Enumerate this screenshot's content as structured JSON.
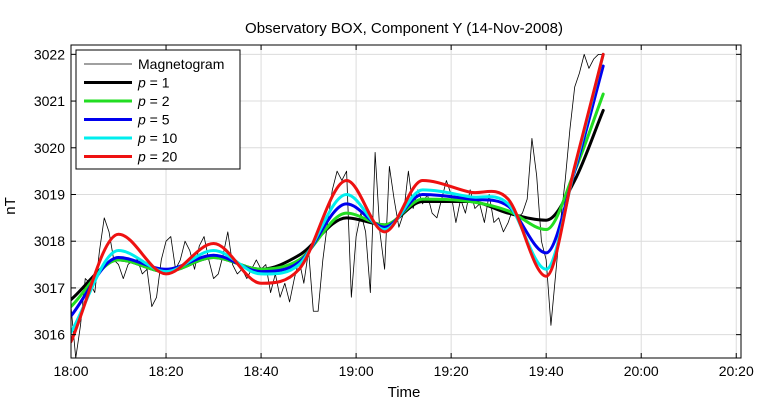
{
  "chart_data": {
    "type": "line",
    "title": "Observatory BOX,  Component Y   (14-Nov-2008)",
    "xlabel": "Time",
    "ylabel": "nT",
    "x_unit": "minutes after 18:00",
    "xlim": [
      0,
      141
    ],
    "ylim": [
      3015.5,
      3022.2
    ],
    "x_ticks": [
      0,
      20,
      40,
      60,
      80,
      100,
      120,
      140
    ],
    "x_tick_labels": [
      "18:00",
      "18:20",
      "18:40",
      "19:00",
      "19:20",
      "19:40",
      "20:00",
      "20:20"
    ],
    "y_ticks": [
      3016,
      3017,
      3018,
      3019,
      3020,
      3021,
      3022
    ],
    "y_tick_labels": [
      "3016",
      "3017",
      "3018",
      "3019",
      "3020",
      "3021",
      "3022"
    ],
    "grid": true,
    "legend_position": "top-left",
    "series": [
      {
        "name": "Magnetogram",
        "color": "#000000",
        "line_width": 0.8,
        "points": [
          [
            0,
            3016.6
          ],
          [
            1,
            3015.5
          ],
          [
            2,
            3016.2
          ],
          [
            3,
            3017.2
          ],
          [
            4,
            3017.1
          ],
          [
            5,
            3016.9
          ],
          [
            6,
            3017.8
          ],
          [
            7,
            3018.5
          ],
          [
            8,
            3018.2
          ],
          [
            9,
            3017.6
          ],
          [
            10,
            3017.5
          ],
          [
            11,
            3017.2
          ],
          [
            12,
            3017.5
          ],
          [
            13,
            3017.6
          ],
          [
            14,
            3017.6
          ],
          [
            15,
            3017.3
          ],
          [
            16,
            3017.4
          ],
          [
            17,
            3016.6
          ],
          [
            18,
            3016.8
          ],
          [
            19,
            3017.6
          ],
          [
            20,
            3018.0
          ],
          [
            21,
            3018.1
          ],
          [
            22,
            3017.4
          ],
          [
            23,
            3017.6
          ],
          [
            24,
            3018.0
          ],
          [
            25,
            3017.8
          ],
          [
            26,
            3017.4
          ],
          [
            27,
            3017.9
          ],
          [
            28,
            3018.1
          ],
          [
            29,
            3017.6
          ],
          [
            30,
            3017.2
          ],
          [
            31,
            3017.3
          ],
          [
            32,
            3017.7
          ],
          [
            33,
            3018.2
          ],
          [
            34,
            3017.5
          ],
          [
            35,
            3017.3
          ],
          [
            36,
            3017.4
          ],
          [
            37,
            3017.2
          ],
          [
            38,
            3017.4
          ],
          [
            39,
            3017.6
          ],
          [
            40,
            3017.4
          ],
          [
            41,
            3017.5
          ],
          [
            42,
            3016.9
          ],
          [
            43,
            3017.3
          ],
          [
            44,
            3016.8
          ],
          [
            45,
            3017.1
          ],
          [
            46,
            3016.7
          ],
          [
            47,
            3017.2
          ],
          [
            48,
            3017.6
          ],
          [
            49,
            3017.1
          ],
          [
            50,
            3017.8
          ],
          [
            51,
            3016.5
          ],
          [
            52,
            3016.5
          ],
          [
            53,
            3017.6
          ],
          [
            54,
            3018.4
          ],
          [
            55,
            3019.1
          ],
          [
            56,
            3019.5
          ],
          [
            57,
            3019.3
          ],
          [
            58,
            3019.5
          ],
          [
            59,
            3016.8
          ],
          [
            60,
            3018.1
          ],
          [
            61,
            3018.6
          ],
          [
            62,
            3018.2
          ],
          [
            63,
            3016.9
          ],
          [
            64,
            3019.9
          ],
          [
            65,
            3018.2
          ],
          [
            66,
            3017.4
          ],
          [
            67,
            3019.6
          ],
          [
            68,
            3018.9
          ],
          [
            69,
            3018.3
          ],
          [
            70,
            3018.6
          ],
          [
            71,
            3019.5
          ],
          [
            72,
            3018.7
          ],
          [
            73,
            3019.1
          ],
          [
            74,
            3018.8
          ],
          [
            75,
            3019.0
          ],
          [
            76,
            3018.6
          ],
          [
            77,
            3018.5
          ],
          [
            78,
            3018.9
          ],
          [
            79,
            3019.3
          ],
          [
            80,
            3019.0
          ],
          [
            81,
            3018.4
          ],
          [
            82,
            3018.9
          ],
          [
            83,
            3018.6
          ],
          [
            84,
            3019.1
          ],
          [
            85,
            3018.7
          ],
          [
            86,
            3018.8
          ],
          [
            87,
            3018.4
          ],
          [
            88,
            3019.0
          ],
          [
            89,
            3018.4
          ],
          [
            90,
            3018.5
          ],
          [
            91,
            3018.2
          ],
          [
            92,
            3018.4
          ],
          [
            93,
            3018.7
          ],
          [
            94,
            3018.5
          ],
          [
            95,
            3018.6
          ],
          [
            96,
            3018.9
          ],
          [
            97,
            3020.2
          ],
          [
            98,
            3019.4
          ],
          [
            99,
            3018.0
          ],
          [
            100,
            3017.6
          ],
          [
            101,
            3016.2
          ],
          [
            102,
            3017.3
          ],
          [
            103,
            3018.4
          ],
          [
            104,
            3019.3
          ],
          [
            105,
            3020.4
          ],
          [
            106,
            3021.3
          ],
          [
            107,
            3021.6
          ],
          [
            108,
            3022.0
          ],
          [
            109,
            3021.7
          ],
          [
            110,
            3021.9
          ],
          [
            111,
            3022.0
          ],
          [
            112,
            3022.0
          ]
        ]
      },
      {
        "name": "p = 1",
        "color": "#000000",
        "line_width": 3,
        "points": [
          [
            0,
            3016.75
          ],
          [
            10,
            3017.6
          ],
          [
            20,
            3017.35
          ],
          [
            30,
            3017.65
          ],
          [
            40,
            3017.4
          ],
          [
            48,
            3017.7
          ],
          [
            58,
            3018.5
          ],
          [
            66,
            3018.35
          ],
          [
            74,
            3018.85
          ],
          [
            84,
            3018.85
          ],
          [
            92,
            3018.6
          ],
          [
            100,
            3018.45
          ],
          [
            106,
            3019.3
          ],
          [
            112,
            3020.8
          ]
        ]
      },
      {
        "name": "p = 2",
        "color": "#22dd22",
        "line_width": 3,
        "points": [
          [
            0,
            3016.6
          ],
          [
            10,
            3017.6
          ],
          [
            20,
            3017.35
          ],
          [
            30,
            3017.65
          ],
          [
            40,
            3017.4
          ],
          [
            48,
            3017.6
          ],
          [
            58,
            3018.6
          ],
          [
            66,
            3018.35
          ],
          [
            74,
            3018.9
          ],
          [
            84,
            3018.85
          ],
          [
            92,
            3018.65
          ],
          [
            100,
            3018.25
          ],
          [
            106,
            3019.5
          ],
          [
            112,
            3021.15
          ]
        ]
      },
      {
        "name": "p = 5",
        "color": "#0000ee",
        "line_width": 3,
        "points": [
          [
            0,
            3016.4
          ],
          [
            10,
            3017.65
          ],
          [
            20,
            3017.4
          ],
          [
            30,
            3017.7
          ],
          [
            40,
            3017.35
          ],
          [
            48,
            3017.55
          ],
          [
            58,
            3018.8
          ],
          [
            66,
            3018.3
          ],
          [
            74,
            3019.0
          ],
          [
            84,
            3018.9
          ],
          [
            92,
            3018.75
          ],
          [
            100,
            3017.75
          ],
          [
            106,
            3019.5
          ],
          [
            112,
            3021.75
          ]
        ]
      },
      {
        "name": "p = 10",
        "color": "#00eeee",
        "line_width": 3,
        "points": [
          [
            0,
            3016.05
          ],
          [
            10,
            3017.8
          ],
          [
            20,
            3017.35
          ],
          [
            30,
            3017.8
          ],
          [
            40,
            3017.3
          ],
          [
            48,
            3017.5
          ],
          [
            58,
            3019.0
          ],
          [
            66,
            3018.25
          ],
          [
            74,
            3019.1
          ],
          [
            84,
            3018.95
          ],
          [
            92,
            3018.8
          ],
          [
            100,
            3017.4
          ],
          [
            106,
            3019.55
          ],
          [
            112,
            3022.0
          ]
        ]
      },
      {
        "name": "p = 20",
        "color": "#ee1111",
        "line_width": 3,
        "points": [
          [
            0,
            3015.85
          ],
          [
            10,
            3018.15
          ],
          [
            20,
            3017.3
          ],
          [
            30,
            3017.95
          ],
          [
            40,
            3017.1
          ],
          [
            48,
            3017.4
          ],
          [
            58,
            3019.3
          ],
          [
            66,
            3018.2
          ],
          [
            74,
            3019.3
          ],
          [
            84,
            3019.05
          ],
          [
            92,
            3018.9
          ],
          [
            100,
            3017.25
          ],
          [
            106,
            3019.6
          ],
          [
            112,
            3022.0
          ]
        ]
      }
    ]
  }
}
